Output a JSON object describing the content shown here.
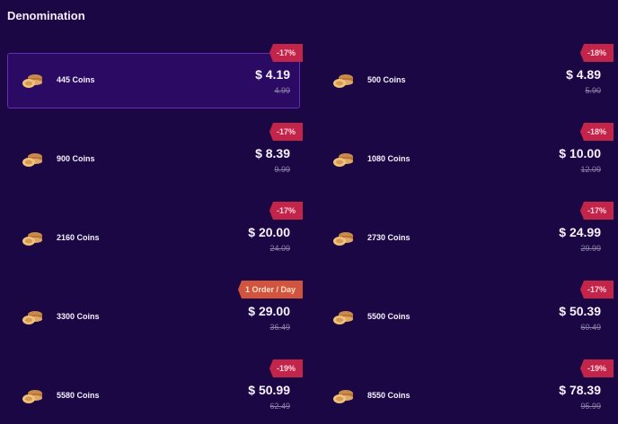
{
  "title": "Denomination",
  "selected_index": 0,
  "items": [
    {
      "name": "445 Coins",
      "price": "$ 4.19",
      "old_price": "4.99",
      "badge": "-17%"
    },
    {
      "name": "500 Coins",
      "price": "$ 4.89",
      "old_price": "5.90",
      "badge": "-18%"
    },
    {
      "name": "900 Coins",
      "price": "$ 8.39",
      "old_price": "9.99",
      "badge": "-17%"
    },
    {
      "name": "1080 Coins",
      "price": "$ 10.00",
      "old_price": "12.09",
      "badge": "-18%"
    },
    {
      "name": "2160 Coins",
      "price": "$ 20.00",
      "old_price": "24.09",
      "badge": "-17%"
    },
    {
      "name": "2730 Coins",
      "price": "$ 24.99",
      "old_price": "29.99",
      "badge": "-17%"
    },
    {
      "name": "3300 Coins",
      "price": "$ 29.00",
      "old_price": "36.49",
      "badge": "1 Order / Day",
      "badge_type": "order"
    },
    {
      "name": "5500 Coins",
      "price": "$ 50.39",
      "old_price": "60.49",
      "badge": "-17%"
    },
    {
      "name": "5580 Coins",
      "price": "$ 50.99",
      "old_price": "62.49",
      "badge": "-19%"
    },
    {
      "name": "8550 Coins",
      "price": "$ 78.39",
      "old_price": "95.99",
      "badge": "-19%"
    }
  ],
  "icon": "coin-stack-icon",
  "colors": {
    "background": "#1b0743",
    "selected": "#2b0a63",
    "badge": "#c2244a",
    "badge_order": "#d0543e"
  }
}
